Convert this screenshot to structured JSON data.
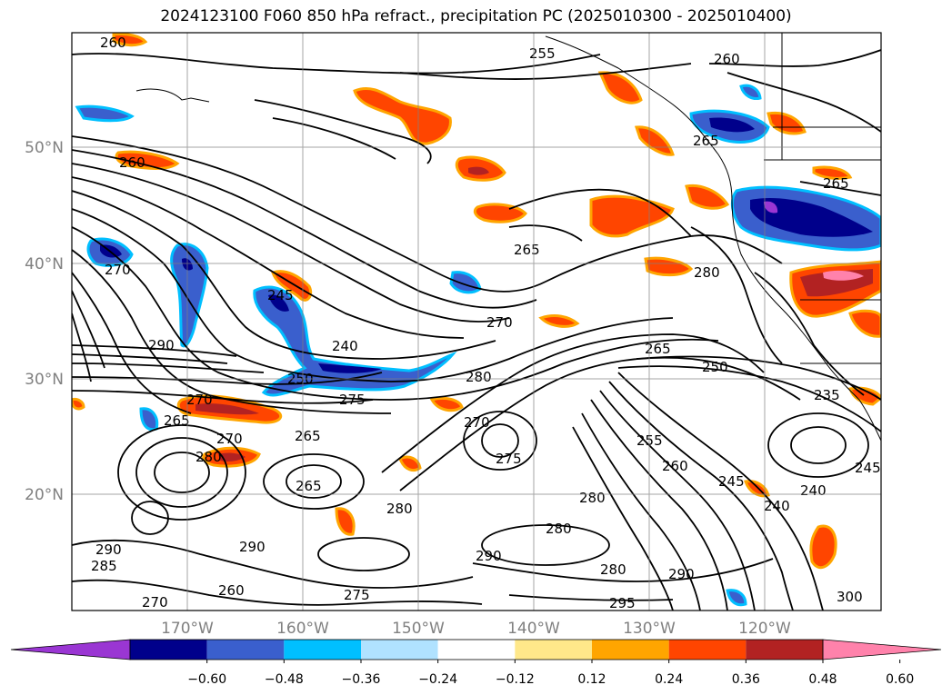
{
  "title": "2024123100 F060 850 hPa refract., precipitation PC (2025010300 - 2025010400)",
  "map": {
    "lat_labels": [
      "50°N",
      "40°N",
      "30°N",
      "20°N"
    ],
    "lon_labels": [
      "170°W",
      "160°W",
      "150°W",
      "140°W",
      "130°W",
      "120°W"
    ],
    "axis_label_color": "#808080",
    "contour_color": "#000000",
    "contour_labels": [
      "260",
      "255",
      "260",
      "260",
      "265",
      "265",
      "265",
      "270",
      "270",
      "280",
      "280",
      "290",
      "245",
      "240",
      "250",
      "275",
      "270",
      "265",
      "270",
      "280",
      "275",
      "265",
      "255",
      "260",
      "245",
      "240",
      "240",
      "245",
      "270",
      "265",
      "280",
      "265",
      "280",
      "280",
      "290",
      "290",
      "280",
      "290",
      "275",
      "270",
      "260",
      "295",
      "300",
      "285",
      "290",
      "250",
      "235"
    ]
  },
  "colorbar": {
    "ticks": [
      "−0.60",
      "−0.48",
      "−0.36",
      "−0.24",
      "−0.12",
      "0.12",
      "0.24",
      "0.36",
      "0.48",
      "0.60"
    ],
    "colors": [
      "#9a36d3",
      "#00008b",
      "#3a5fcd",
      "#00bfff",
      "#b0e2ff",
      "#ffffff",
      "#ffe88a",
      "#ffa500",
      "#ff4500",
      "#b22222",
      "#ff82ab"
    ]
  }
}
